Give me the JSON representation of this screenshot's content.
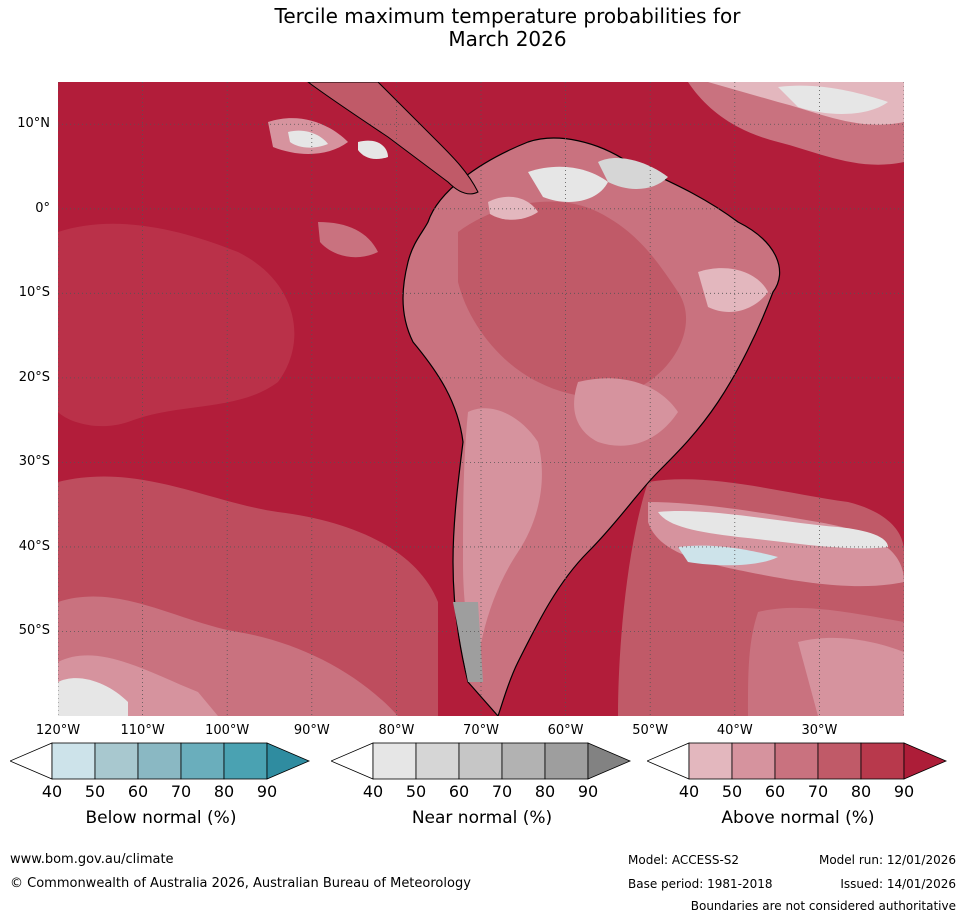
{
  "title_line1": "Tercile maximum temperature probabilities for",
  "title_line2": "March 2026",
  "map": {
    "lon_range": [
      -120,
      -20
    ],
    "lat_range": [
      -60,
      15
    ],
    "lat_labels": [
      "10°N",
      "0°",
      "10°S",
      "20°S",
      "30°S",
      "40°S",
      "50°S"
    ],
    "lon_labels": [
      "120°W",
      "110°W",
      "100°W",
      "90°W",
      "80°W",
      "70°W",
      "60°W",
      "50°W",
      "40°W",
      "30°W"
    ],
    "gridlines": true
  },
  "colorbars": [
    {
      "title": "Below normal (%)",
      "ticks": [
        "40",
        "50",
        "60",
        "70",
        "80",
        "90"
      ],
      "colors": [
        "#cde3ea",
        "#a8c8cf",
        "#8ab8c3",
        "#6aaebc",
        "#4aa2b2",
        "#2f8ca0"
      ]
    },
    {
      "title": "Near normal (%)",
      "ticks": [
        "40",
        "50",
        "60",
        "70",
        "80",
        "90"
      ],
      "colors": [
        "#e6e6e6",
        "#d6d6d6",
        "#c6c6c6",
        "#b2b2b2",
        "#9e9e9e",
        "#828282"
      ]
    },
    {
      "title": "Above normal (%)",
      "ticks": [
        "40",
        "50",
        "60",
        "70",
        "80",
        "90"
      ],
      "colors": [
        "#e3b7be",
        "#d6939e",
        "#c9727f",
        "#c05a68",
        "#b8394c",
        "#ad1d38"
      ]
    }
  ],
  "footer": {
    "website": "www.bom.gov.au/climate",
    "copyright": "© Commonwealth of Australia 2026, Australian Bureau of Meteorology",
    "model": "Model: ACCESS-S2",
    "base_period": "Base period: 1981-2018",
    "model_run": "Model run: 12/01/2026",
    "issued": "Issued: 14/01/2026",
    "disclaimer": "Boundaries are not considered authoritative"
  }
}
